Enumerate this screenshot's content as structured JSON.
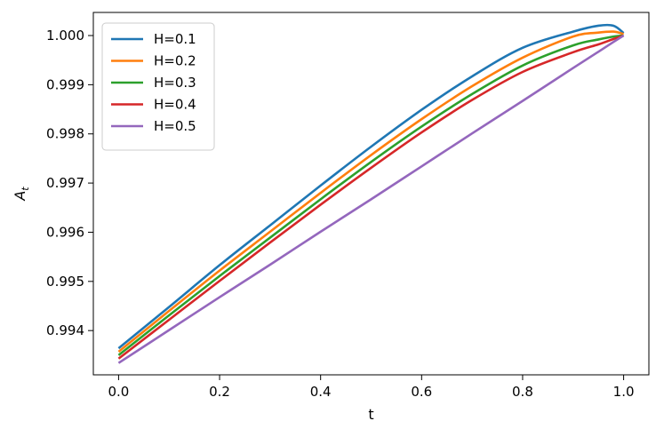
{
  "chart_data": {
    "type": "line",
    "xlabel": "t",
    "ylabel_main": "A",
    "ylabel_sub": "t",
    "xlim": [
      -0.05,
      1.05
    ],
    "ylim": [
      0.9931,
      1.00047
    ],
    "xticks": [
      0.0,
      0.2,
      0.4,
      0.6,
      0.8,
      1.0
    ],
    "xtick_labels": [
      "0.0",
      "0.2",
      "0.4",
      "0.6",
      "0.8",
      "1.0"
    ],
    "yticks": [
      0.994,
      0.995,
      0.996,
      0.997,
      0.998,
      0.999,
      1.0
    ],
    "ytick_labels": [
      "0.994",
      "0.995",
      "0.996",
      "0.997",
      "0.998",
      "0.999",
      "1.000"
    ],
    "grid": false,
    "legend_position": "top-left",
    "x": [
      0.0,
      0.1,
      0.2,
      0.3,
      0.4,
      0.5,
      0.6,
      0.7,
      0.8,
      0.9,
      0.95,
      0.98,
      1.0
    ],
    "series": [
      {
        "name": "H=0.1",
        "color": "#1f77b4",
        "values": [
          0.99364,
          0.99448,
          0.99533,
          0.99614,
          0.99695,
          0.99774,
          0.99849,
          0.99917,
          0.99975,
          1.00008,
          1.0002,
          1.0002,
          1.00005
        ]
      },
      {
        "name": "H=0.2",
        "color": "#ff7f0e",
        "values": [
          0.99357,
          0.9944,
          0.99522,
          0.99601,
          0.9968,
          0.99757,
          0.9983,
          0.99897,
          0.99955,
          0.99998,
          1.00006,
          1.00008,
          1.00003
        ]
      },
      {
        "name": "H=0.3",
        "color": "#2ca02c",
        "values": [
          0.9935,
          0.99431,
          0.99511,
          0.99589,
          0.99667,
          0.99743,
          0.99815,
          0.99881,
          0.99939,
          0.9998,
          0.99992,
          0.99998,
          1.0
        ]
      },
      {
        "name": "H=0.4",
        "color": "#d62728",
        "values": [
          0.99343,
          0.99422,
          0.99501,
          0.99579,
          0.99656,
          0.99731,
          0.99803,
          0.99869,
          0.99926,
          0.99966,
          0.99982,
          0.99993,
          1.0
        ]
      },
      {
        "name": "H=0.5",
        "color": "#9467bd",
        "values": [
          0.99334,
          0.99401,
          0.99468,
          0.99534,
          0.99601,
          0.99667,
          0.99734,
          0.99801,
          0.99867,
          0.99934,
          0.99967,
          0.99987,
          1.0
        ]
      }
    ]
  }
}
